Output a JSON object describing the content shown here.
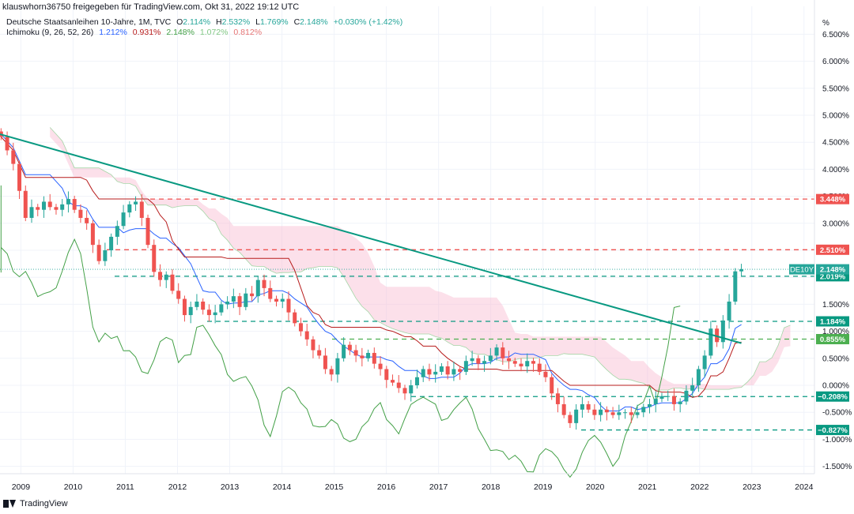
{
  "header": {
    "publisher": "klauswhorn36750 freigegeben für TradingView.com, Okt 31, 2022 19:12 UTC"
  },
  "legend": {
    "symbol": "Deutsche Staatsanleihen 10-Jahre, 1M, TVC",
    "o_label": "O",
    "o_value": "2.114%",
    "h_label": "H",
    "h_value": "2.532%",
    "l_label": "L",
    "l_value": "1.769%",
    "c_label": "C",
    "c_value": "2.148%",
    "change": "+0.030% (+1.42%)",
    "ichimoku_name": "Ichimoku (9, 26, 52, 26)",
    "ichi_v1": "1.212%",
    "ichi_v2": "0.931%",
    "ichi_v3": "2.148%",
    "ichi_v4": "1.072%",
    "ichi_v5": "0.812%"
  },
  "footer": {
    "brand": "TradingView"
  },
  "colors": {
    "up": "#26a69a",
    "down": "#ef5350",
    "conversion": "#2962ff",
    "base": "#b71c1c",
    "lagging": "#43a047",
    "cloud_bull": "#a5d6a7",
    "cloud_bear": "#f8bbd0",
    "trendline": "#089981",
    "axis_text": "#131722"
  },
  "chart_data": {
    "type": "candlestick",
    "instrument": "DE10Y",
    "y_unit": "%",
    "y_ticks": [
      "6.500%",
      "6.000%",
      "5.500%",
      "5.000%",
      "4.500%",
      "4.000%",
      "3.500%",
      "3.000%",
      "2.500%",
      "2.000%",
      "1.500%",
      "1.000%",
      "0.500%",
      "0.000%",
      "-0.500%",
      "-1.000%",
      "-1.500%"
    ],
    "y_tick_values": [
      6.5,
      6.0,
      5.5,
      5.0,
      4.5,
      4.0,
      3.5,
      3.0,
      2.5,
      2.0,
      1.5,
      1.0,
      0.5,
      0.0,
      -0.5,
      -1.0,
      -1.5
    ],
    "x_ticks": [
      "2009",
      "2010",
      "2011",
      "2012",
      "2013",
      "2014",
      "2015",
      "2016",
      "2017",
      "2018",
      "2019",
      "2020",
      "2021",
      "2022",
      "2023",
      "2024"
    ],
    "x_tick_years": [
      2009,
      2010,
      2011,
      2012,
      2013,
      2014,
      2015,
      2016,
      2017,
      2018,
      2019,
      2020,
      2021,
      2022,
      2023,
      2024
    ],
    "x_range": [
      2008.6,
      2024.2
    ],
    "y_range": [
      -1.8,
      7.0
    ],
    "closes": [
      4.6,
      4.35,
      4.1,
      3.6,
      3.1,
      3.3,
      3.25,
      3.4,
      3.3,
      3.25,
      3.35,
      3.45,
      3.25,
      3.1,
      3.0,
      2.6,
      2.3,
      2.5,
      2.75,
      2.95,
      3.2,
      3.35,
      3.4,
      3.1,
      2.6,
      2.1,
      1.95,
      2.05,
      1.75,
      1.6,
      1.3,
      1.45,
      1.55,
      1.4,
      1.3,
      1.35,
      1.5,
      1.55,
      1.65,
      1.45,
      1.7,
      1.65,
      1.95,
      1.8,
      1.6,
      1.55,
      1.6,
      1.35,
      1.15,
      1.0,
      0.85,
      0.65,
      0.55,
      0.3,
      0.2,
      0.5,
      0.75,
      0.65,
      0.55,
      0.5,
      0.6,
      0.4,
      0.3,
      0.1,
      0.05,
      -0.05,
      -0.15,
      0.0,
      0.15,
      0.3,
      0.2,
      0.25,
      0.35,
      0.2,
      0.3,
      0.25,
      0.45,
      0.5,
      0.4,
      0.45,
      0.55,
      0.7,
      0.5,
      0.45,
      0.4,
      0.35,
      0.45,
      0.4,
      0.25,
      0.15,
      -0.15,
      -0.35,
      -0.55,
      -0.7,
      -0.45,
      -0.35,
      -0.45,
      -0.55,
      -0.45,
      -0.5,
      -0.55,
      -0.5,
      -0.5,
      -0.55,
      -0.5,
      -0.4,
      -0.35,
      -0.25,
      -0.2,
      -0.2,
      -0.35,
      -0.3,
      -0.1,
      0.0,
      0.3,
      0.55,
      1.05,
      0.8,
      1.2,
      1.55,
      2.11,
      2.15
    ],
    "ichimoku": {
      "conversion_line": "blue",
      "base_line": "dark red",
      "lagging_span": "green",
      "cloud": "green/red shaded"
    },
    "horizontal_levels": [
      {
        "value": 3.448,
        "label": "3.448%",
        "style": "dashed",
        "color": "#ef5350"
      },
      {
        "value": 2.51,
        "label": "2.510%",
        "style": "dashed",
        "color": "#ef5350"
      },
      {
        "value": 2.019,
        "label": "2.019%",
        "style": "dashed",
        "color": "#089981"
      },
      {
        "value": 1.184,
        "label": "1.184%",
        "style": "dashed",
        "color": "#089981"
      },
      {
        "value": 0.855,
        "label": "0.855%",
        "style": "dashed",
        "color": "#4caf50"
      },
      {
        "value": -0.208,
        "label": "−0.208%",
        "style": "dashed",
        "color": "#089981"
      },
      {
        "value": -0.827,
        "label": "−0.827%",
        "style": "dashed",
        "color": "#089981"
      }
    ],
    "price_label": {
      "symbol": "DE10Y",
      "value": "2.148%",
      "y": 2.148
    },
    "trendline": {
      "from": [
        2008.6,
        4.65
      ],
      "to": [
        2022.8,
        0.78
      ]
    }
  }
}
